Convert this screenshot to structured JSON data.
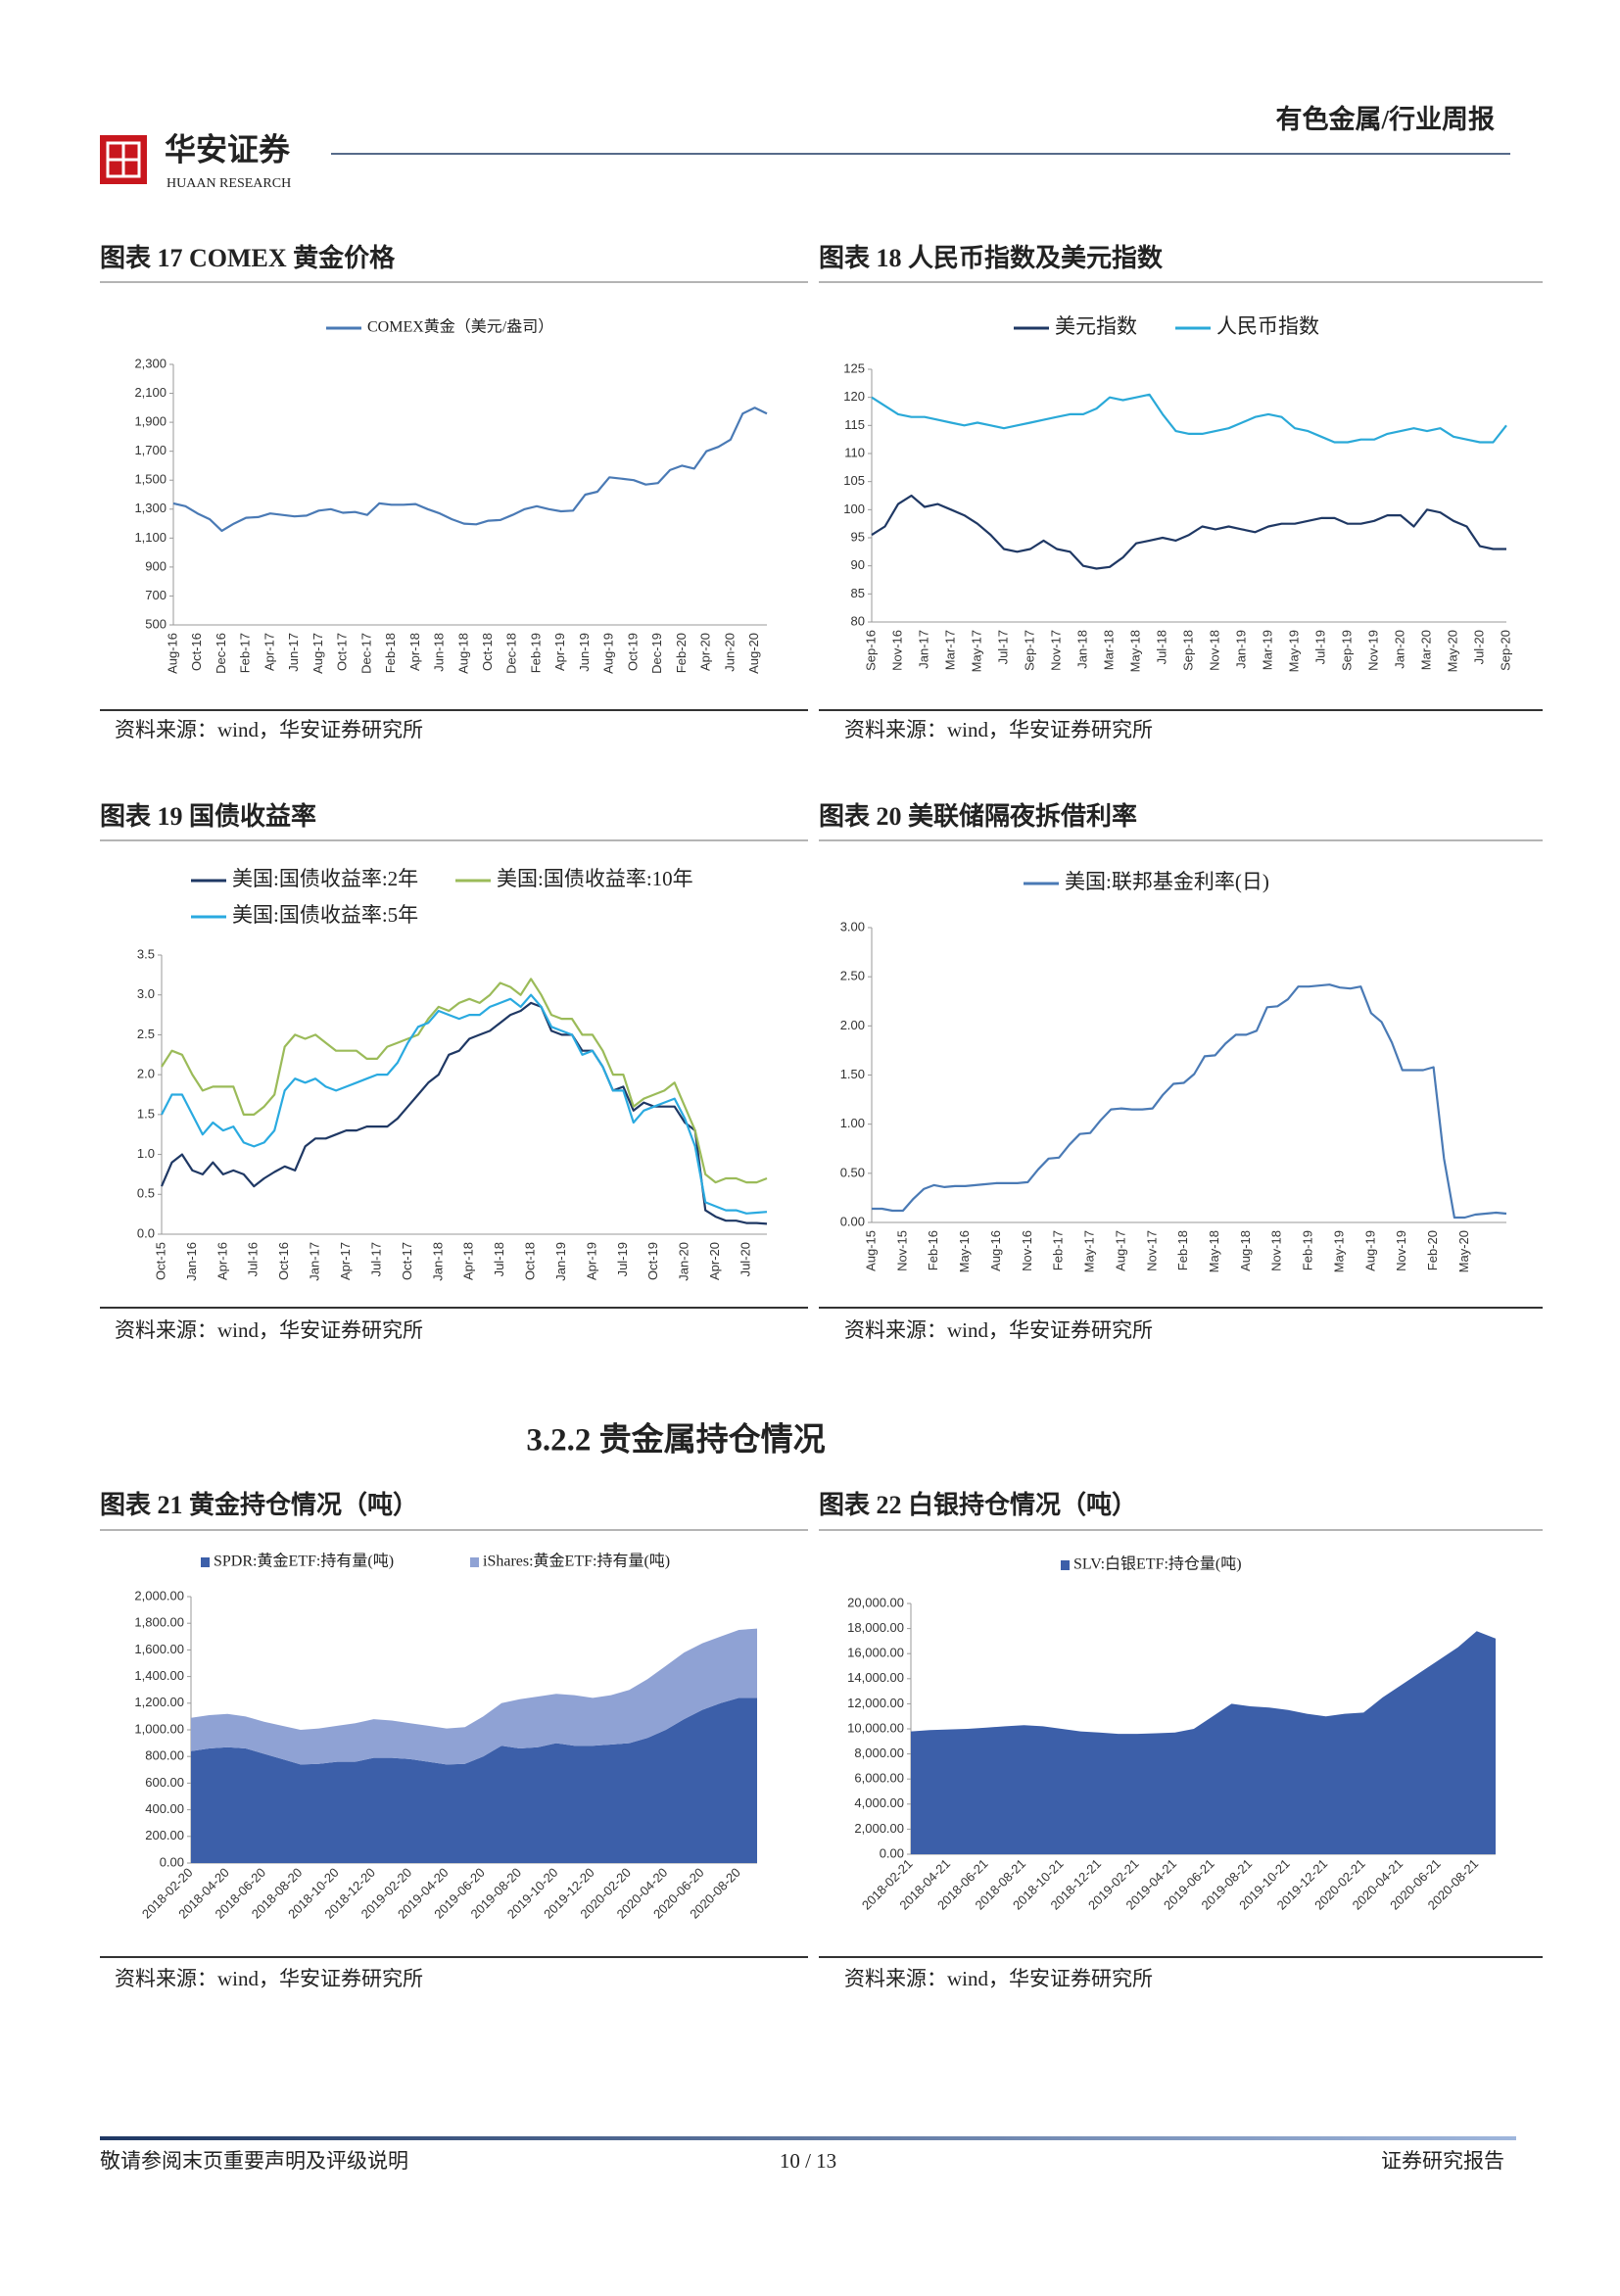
{
  "header": {
    "report_type": "有色金属/行业周报",
    "logo_cn": "华安证券",
    "logo_en": "HUAAN RESEARCH"
  },
  "section_heading": "3.2.2  贵金属持仓情况",
  "footer": {
    "left": "敬请参阅末页重要声明及评级说明",
    "page": "10 / 13",
    "right": "证券研究报告"
  },
  "chart_data": [
    {
      "type": "line",
      "title": "图表 17 COMEX 黄金价格",
      "source": "资料来源：wind，华安证券研究所",
      "categories": [
        "Aug-16",
        null,
        "Oct-16",
        null,
        "Dec-16",
        null,
        "Feb-17",
        null,
        "Apr-17",
        null,
        "Jun-17",
        null,
        "Aug-17",
        null,
        "Oct-17",
        null,
        "Dec-17",
        null,
        "Feb-18",
        null,
        "Apr-18",
        null,
        "Jun-18",
        null,
        "Aug-18",
        null,
        "Oct-18",
        null,
        "Dec-18",
        null,
        "Feb-19",
        null,
        "Apr-19",
        null,
        "Jun-19",
        null,
        "Aug-19",
        null,
        "Oct-19",
        null,
        "Dec-19",
        null,
        "Feb-20",
        null,
        "Apr-20",
        null,
        "Jun-20",
        null,
        "Aug-20",
        null
      ],
      "series": [
        {
          "name": "COMEX黄金（美元/盎司）",
          "color": "#4a7ab5",
          "values": [
            1340,
            1320,
            1270,
            1230,
            1150,
            1200,
            1240,
            1245,
            1270,
            1260,
            1250,
            1255,
            1290,
            1300,
            1275,
            1280,
            1260,
            1340,
            1330,
            1330,
            1335,
            1300,
            1270,
            1230,
            1200,
            1195,
            1220,
            1225,
            1260,
            1300,
            1320,
            1300,
            1285,
            1290,
            1400,
            1420,
            1520,
            1510,
            1500,
            1470,
            1480,
            1570,
            1600,
            1580,
            1700,
            1730,
            1780,
            1960,
            2000,
            1960
          ]
        }
      ],
      "ylim": [
        500,
        2300
      ],
      "yticks": [
        500,
        700,
        900,
        {
          "value": 1100,
          "label": "1,100"
        },
        {
          "value": 1300,
          "label": "1,300"
        },
        {
          "value": 1500,
          "label": "1,500"
        },
        {
          "value": 1700,
          "label": "1,700"
        },
        {
          "value": 1900,
          "label": "1,900"
        },
        {
          "value": 2100,
          "label": "2,100"
        },
        {
          "value": 2300,
          "label": "2,300"
        }
      ]
    },
    {
      "type": "line",
      "title": "图表 18 人民币指数及美元指数",
      "source": "资料来源：wind，华安证券研究所",
      "categories": [
        "Sep-16",
        null,
        "Nov-16",
        null,
        "Jan-17",
        null,
        "Mar-17",
        null,
        "May-17",
        null,
        "Jul-17",
        null,
        "Sep-17",
        null,
        "Nov-17",
        null,
        "Jan-18",
        null,
        "Mar-18",
        null,
        "May-18",
        null,
        "Jul-18",
        null,
        "Sep-18",
        null,
        "Nov-18",
        null,
        "Jan-19",
        null,
        "Mar-19",
        null,
        "May-19",
        null,
        "Jul-19",
        null,
        "Sep-19",
        null,
        "Nov-19",
        null,
        "Jan-20",
        null,
        "Mar-20",
        null,
        "May-20",
        null,
        "Jul-20",
        null,
        "Sep-20"
      ],
      "series": [
        {
          "name": "美元指数",
          "color": "#1f3864",
          "values": [
            95.5,
            97,
            101,
            102.5,
            100.5,
            101,
            100,
            99,
            97.5,
            95.5,
            93,
            92.5,
            93,
            94.5,
            93,
            92.5,
            90,
            89.5,
            89.8,
            91.5,
            94,
            94.5,
            95,
            94.5,
            95.5,
            97,
            96.5,
            97,
            96.5,
            96,
            97,
            97.5,
            97.5,
            98,
            98.5,
            98.5,
            97.5,
            97.5,
            98,
            99,
            99,
            97,
            100,
            99.5,
            98,
            97,
            93.5,
            93,
            93
          ]
        },
        {
          "name": "人民币指数",
          "color": "#2aa9d8",
          "values": [
            120,
            118.5,
            117,
            116.5,
            116.5,
            116,
            115.5,
            115,
            115.5,
            115,
            114.5,
            115,
            115.5,
            116,
            116.5,
            117,
            117,
            118,
            120,
            119.5,
            120,
            120.5,
            117,
            114,
            113.5,
            113.5,
            114,
            114.5,
            115.5,
            116.5,
            117,
            116.5,
            114.5,
            114,
            113,
            112,
            112,
            112.5,
            112.5,
            113.5,
            114,
            114.5,
            114,
            114.5,
            113,
            112.5,
            112,
            112,
            115
          ]
        }
      ],
      "ylim": [
        80,
        125
      ],
      "yticks": [
        80,
        85,
        90,
        95,
        100,
        105,
        110,
        115,
        120,
        125
      ]
    },
    {
      "type": "line",
      "title": "图表 19 国债收益率",
      "source": "资料来源：wind，华安证券研究所",
      "categories": [
        "Oct-15",
        null,
        null,
        "Jan-16",
        null,
        null,
        "Apr-16",
        null,
        null,
        "Jul-16",
        null,
        null,
        "Oct-16",
        null,
        null,
        "Jan-17",
        null,
        null,
        "Apr-17",
        null,
        null,
        "Jul-17",
        null,
        null,
        "Oct-17",
        null,
        null,
        "Jan-18",
        null,
        null,
        "Apr-18",
        null,
        null,
        "Jul-18",
        null,
        null,
        "Oct-18",
        null,
        null,
        "Jan-19",
        null,
        null,
        "Apr-19",
        null,
        null,
        "Jul-19",
        null,
        null,
        "Oct-19",
        null,
        null,
        "Jan-20",
        null,
        null,
        "Apr-20",
        null,
        null,
        "Jul-20",
        null,
        null
      ],
      "series": [
        {
          "name": "美国:国债收益率:2年",
          "color": "#1f3864",
          "values": [
            0.6,
            0.9,
            1.0,
            0.8,
            0.75,
            0.9,
            0.75,
            0.8,
            0.75,
            0.6,
            0.7,
            0.78,
            0.85,
            0.8,
            1.1,
            1.2,
            1.2,
            1.25,
            1.3,
            1.3,
            1.35,
            1.35,
            1.35,
            1.45,
            1.6,
            1.75,
            1.9,
            2.0,
            2.25,
            2.3,
            2.45,
            2.5,
            2.55,
            2.65,
            2.75,
            2.8,
            2.9,
            2.85,
            2.55,
            2.5,
            2.5,
            2.3,
            2.3,
            2.1,
            1.8,
            1.85,
            1.55,
            1.65,
            1.6,
            1.6,
            1.6,
            1.4,
            1.3,
            0.3,
            0.22,
            0.17,
            0.17,
            0.14,
            0.14,
            0.13
          ]
        },
        {
          "name": "美国:国债收益率:10年",
          "color": "#9bbb59",
          "values": [
            2.1,
            2.3,
            2.25,
            2.0,
            1.8,
            1.85,
            1.85,
            1.85,
            1.5,
            1.5,
            1.6,
            1.75,
            2.35,
            2.5,
            2.45,
            2.5,
            2.4,
            2.3,
            2.3,
            2.3,
            2.2,
            2.2,
            2.35,
            2.4,
            2.45,
            2.5,
            2.7,
            2.85,
            2.8,
            2.9,
            2.95,
            2.9,
            3.0,
            3.15,
            3.1,
            3.0,
            3.2,
            3.0,
            2.75,
            2.7,
            2.7,
            2.5,
            2.5,
            2.3,
            2.0,
            2.0,
            1.6,
            1.7,
            1.75,
            1.8,
            1.9,
            1.6,
            1.3,
            0.75,
            0.65,
            0.7,
            0.7,
            0.65,
            0.65,
            0.7
          ]
        },
        {
          "name": "美国:国债收益率:5年",
          "color": "#2aaae0",
          "values": [
            1.5,
            1.75,
            1.75,
            1.5,
            1.25,
            1.4,
            1.3,
            1.35,
            1.15,
            1.1,
            1.15,
            1.3,
            1.8,
            1.95,
            1.9,
            1.95,
            1.85,
            1.8,
            1.85,
            1.9,
            1.95,
            2.0,
            2.0,
            2.15,
            2.4,
            2.6,
            2.65,
            2.8,
            2.75,
            2.7,
            2.75,
            2.75,
            2.85,
            2.9,
            2.95,
            2.85,
            3.0,
            2.85,
            2.6,
            2.55,
            2.5,
            2.25,
            2.3,
            2.1,
            1.8,
            1.8,
            1.4,
            1.55,
            1.6,
            1.65,
            1.7,
            1.45,
            1.1,
            0.4,
            0.35,
            0.3,
            0.3,
            0.26,
            0.27,
            0.28
          ]
        }
      ],
      "ylim": [
        0,
        3.5
      ],
      "yticks": [
        {
          "value": 0,
          "label": "0.0"
        },
        0.5,
        {
          "value": 1,
          "label": "1.0"
        },
        1.5,
        {
          "value": 2,
          "label": "2.0"
        },
        2.5,
        {
          "value": 3,
          "label": "3.0"
        },
        3.5
      ]
    },
    {
      "type": "line",
      "title": "图表 20 美联储隔夜拆借利率",
      "source": "资料来源：wind，华安证券研究所",
      "categories": [
        "Aug-15",
        null,
        null,
        "Nov-15",
        null,
        null,
        "Feb-16",
        null,
        null,
        "May-16",
        null,
        null,
        "Aug-16",
        null,
        null,
        "Nov-16",
        null,
        null,
        "Feb-17",
        null,
        null,
        "May-17",
        null,
        null,
        "Aug-17",
        null,
        null,
        "Nov-17",
        null,
        null,
        "Feb-18",
        null,
        null,
        "May-18",
        null,
        null,
        "Aug-18",
        null,
        null,
        "Nov-18",
        null,
        null,
        "Feb-19",
        null,
        null,
        "May-19",
        null,
        null,
        "Aug-19",
        null,
        null,
        "Nov-19",
        null,
        null,
        "Feb-20",
        null,
        null,
        "May-20",
        null,
        null,
        null,
        null
      ],
      "series": [
        {
          "name": "美国:联邦基金利率(日)",
          "color": "#4a7ab5",
          "values": [
            0.14,
            0.14,
            0.12,
            0.12,
            0.24,
            0.34,
            0.38,
            0.36,
            0.37,
            0.37,
            0.38,
            0.39,
            0.4,
            0.4,
            0.4,
            0.41,
            0.54,
            0.65,
            0.66,
            0.79,
            0.9,
            0.91,
            1.04,
            1.15,
            1.16,
            1.15,
            1.15,
            1.16,
            1.3,
            1.41,
            1.42,
            1.51,
            1.69,
            1.7,
            1.82,
            1.91,
            1.91,
            1.95,
            2.19,
            2.2,
            2.27,
            2.4,
            2.4,
            2.41,
            2.42,
            2.39,
            2.38,
            2.4,
            2.13,
            2.04,
            1.83,
            1.55,
            1.55,
            1.55,
            1.58,
            0.65,
            0.05,
            0.05,
            0.08,
            0.09,
            0.1,
            0.09
          ]
        }
      ],
      "ylim": [
        0,
        3
      ],
      "yticks": [
        {
          "value": 0,
          "label": "0.00"
        },
        {
          "value": 0.5,
          "label": "0.50"
        },
        {
          "value": 1,
          "label": "1.00"
        },
        {
          "value": 1.5,
          "label": "1.50"
        },
        {
          "value": 2,
          "label": "2.00"
        },
        {
          "value": 2.5,
          "label": "2.50"
        },
        {
          "value": 3,
          "label": "3.00"
        }
      ]
    },
    {
      "type": "area",
      "stacked": true,
      "title": "图表 21 黄金持仓情况（吨）",
      "source": "资料来源：wind，华安证券研究所",
      "categories": [
        "2018-02-20",
        null,
        "2018-04-20",
        null,
        "2018-06-20",
        null,
        "2018-08-20",
        null,
        "2018-10-20",
        null,
        "2018-12-20",
        null,
        "2019-02-20",
        null,
        "2019-04-20",
        null,
        "2019-06-20",
        null,
        "2019-08-20",
        null,
        "2019-10-20",
        null,
        "2019-12-20",
        null,
        "2020-02-20",
        null,
        "2020-04-20",
        null,
        "2020-06-20",
        null,
        "2020-08-20",
        null
      ],
      "series": [
        {
          "name": "SPDR:黄金ETF:持有量(吨)",
          "color": "#3c5fa9",
          "values": [
            840,
            860,
            870,
            860,
            820,
            780,
            740,
            745,
            760,
            760,
            790,
            790,
            780,
            760,
            740,
            745,
            800,
            880,
            860,
            870,
            900,
            880,
            880,
            890,
            900,
            940,
            1000,
            1080,
            1150,
            1200,
            1240,
            1240
          ]
        },
        {
          "name": "iShares:黄金ETF:持有量(吨)",
          "color": "#8fa2d4",
          "values": [
            250,
            250,
            250,
            240,
            240,
            250,
            260,
            265,
            270,
            290,
            290,
            280,
            270,
            270,
            270,
            275,
            300,
            320,
            370,
            380,
            370,
            380,
            360,
            370,
            400,
            440,
            480,
            500,
            500,
            500,
            510,
            520
          ]
        }
      ],
      "ylim": [
        0,
        2000
      ],
      "yticks": [
        {
          "value": 0,
          "label": "0.00"
        },
        {
          "value": 200,
          "label": "200.00"
        },
        {
          "value": 400,
          "label": "400.00"
        },
        {
          "value": 600,
          "label": "600.00"
        },
        {
          "value": 800,
          "label": "800.00"
        },
        {
          "value": 1000,
          "label": "1,000.00"
        },
        {
          "value": 1200,
          "label": "1,200.00"
        },
        {
          "value": 1400,
          "label": "1,400.00"
        },
        {
          "value": 1600,
          "label": "1,600.00"
        },
        {
          "value": 1800,
          "label": "1,800.00"
        },
        {
          "value": 2000,
          "label": "2,000.00"
        }
      ]
    },
    {
      "type": "area",
      "title": "图表 22 白银持仓情况（吨）",
      "source": "资料来源：wind，华安证券研究所",
      "categories": [
        "2018-02-21",
        null,
        "2018-04-21",
        null,
        "2018-06-21",
        null,
        "2018-08-21",
        null,
        "2018-10-21",
        null,
        "2018-12-21",
        null,
        "2019-02-21",
        null,
        "2019-04-21",
        null,
        "2019-06-21",
        null,
        "2019-08-21",
        null,
        "2019-10-21",
        null,
        "2019-12-21",
        null,
        "2020-02-21",
        null,
        "2020-04-21",
        null,
        "2020-06-21",
        null,
        "2020-08-21",
        null
      ],
      "series": [
        {
          "name": "SLV:白银ETF:持仓量(吨)",
          "color": "#3c5fa9",
          "values": [
            9800,
            9900,
            9950,
            10000,
            10100,
            10200,
            10300,
            10200,
            10000,
            9800,
            9700,
            9600,
            9600,
            9650,
            9700,
            10000,
            11000,
            12000,
            11800,
            11700,
            11500,
            11200,
            11000,
            11200,
            11300,
            12500,
            13500,
            14500,
            15500,
            16500,
            17800,
            17200
          ]
        }
      ],
      "ylim": [
        0,
        20000
      ],
      "yticks": [
        {
          "value": 0,
          "label": "0.00"
        },
        {
          "value": 2000,
          "label": "2,000.00"
        },
        {
          "value": 4000,
          "label": "4,000.00"
        },
        {
          "value": 6000,
          "label": "6,000.00"
        },
        {
          "value": 8000,
          "label": "8,000.00"
        },
        {
          "value": 10000,
          "label": "10,000.00"
        },
        {
          "value": 12000,
          "label": "12,000.00"
        },
        {
          "value": 14000,
          "label": "14,000.00"
        },
        {
          "value": 16000,
          "label": "16,000.00"
        },
        {
          "value": 18000,
          "label": "18,000.00"
        },
        {
          "value": 20000,
          "label": "20,000.00"
        }
      ]
    }
  ]
}
